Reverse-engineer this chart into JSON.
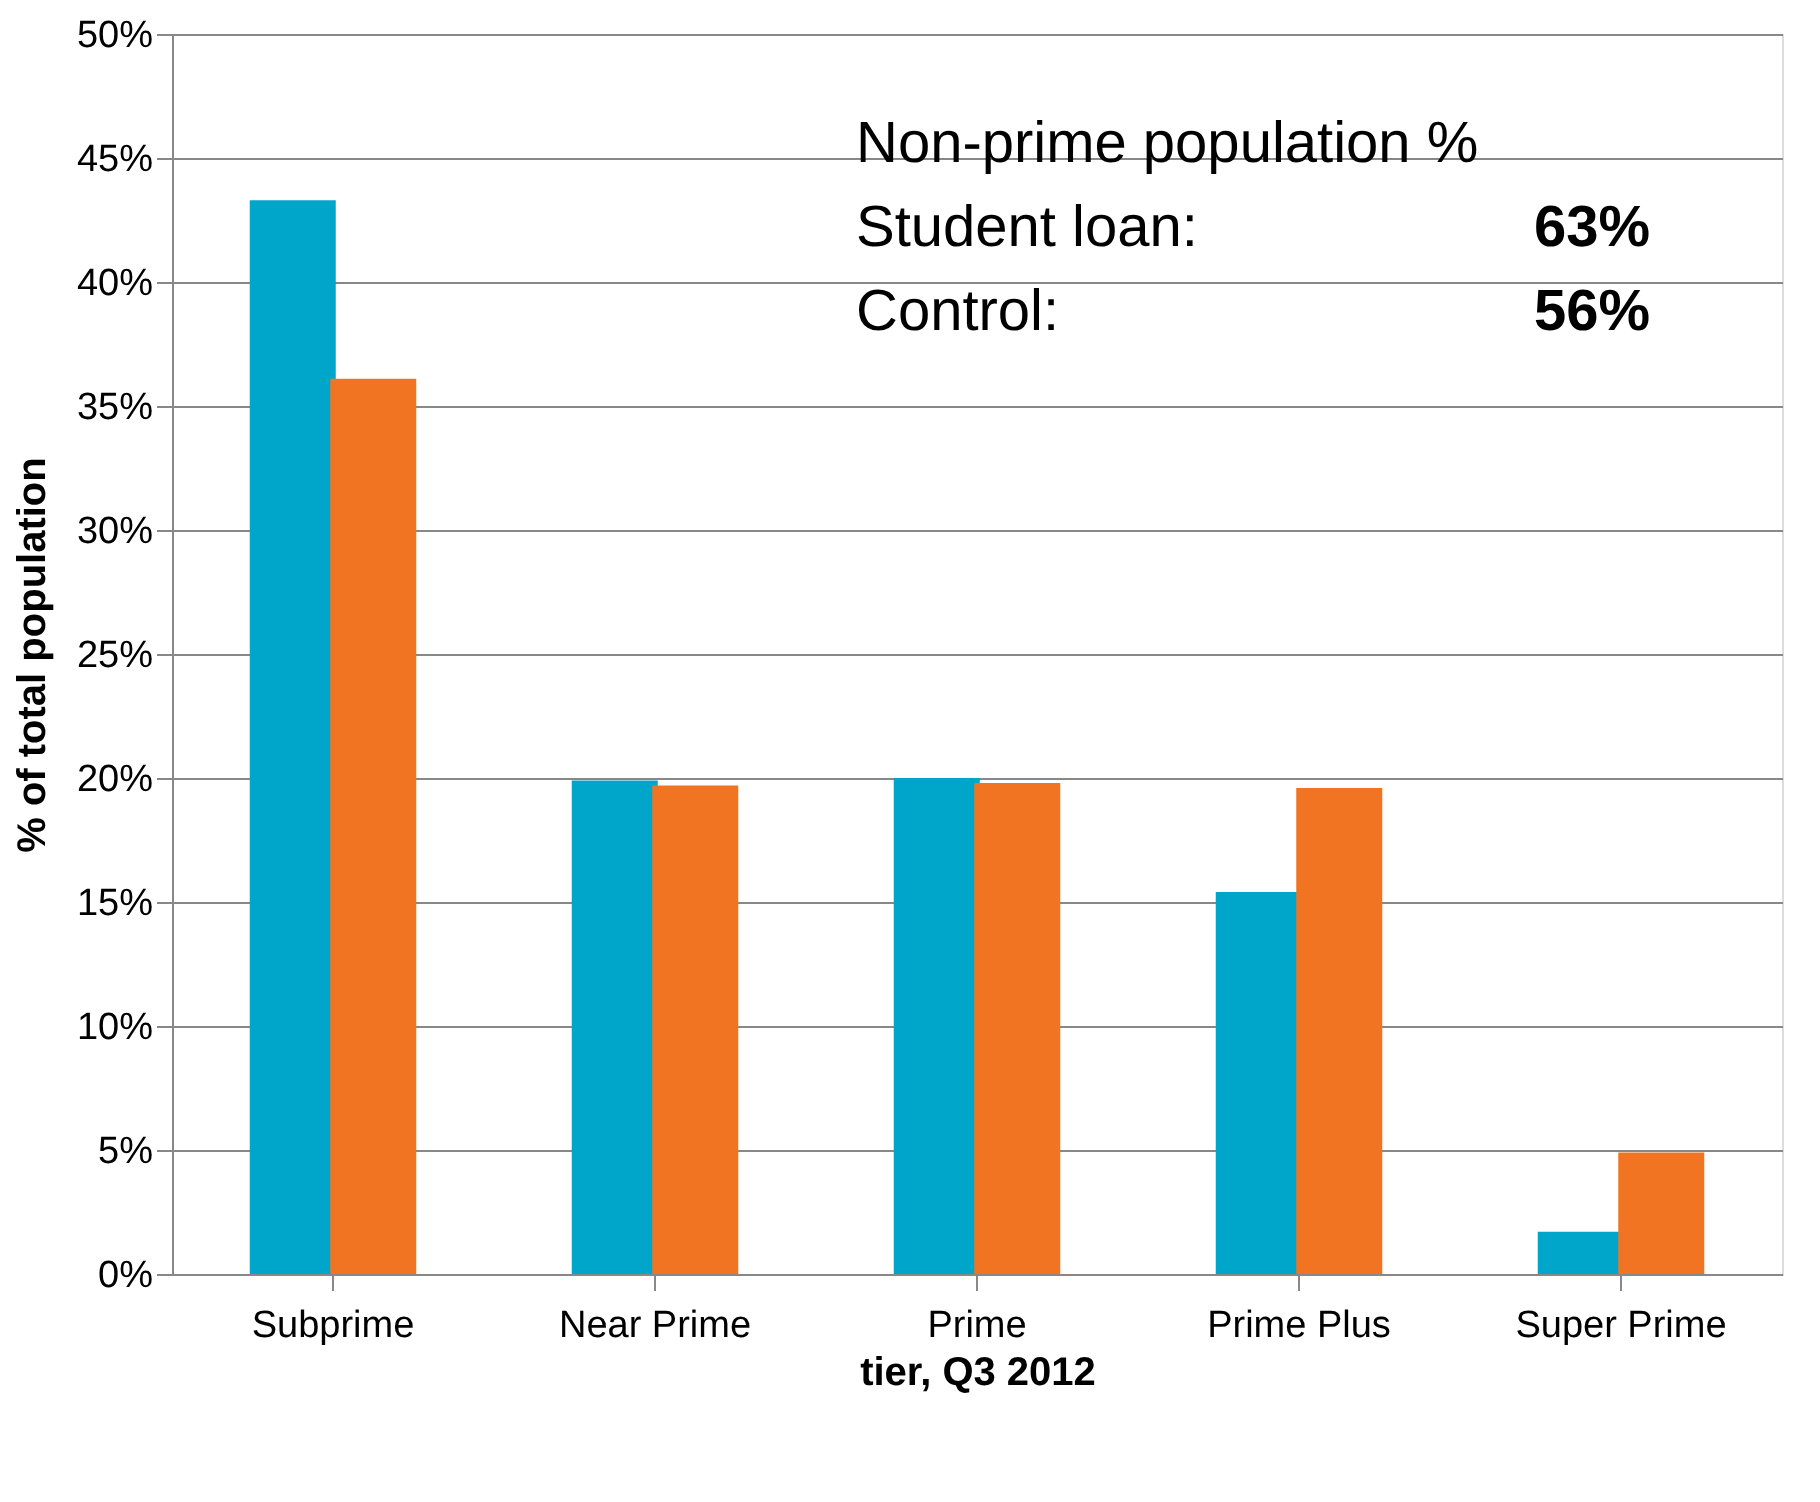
{
  "chart_data": {
    "type": "bar",
    "xlabel": "tier, Q3 2012",
    "ylabel": "% of total population",
    "categories": [
      "Subprime",
      "Near Prime",
      "Prime",
      "Prime Plus",
      "Super Prime"
    ],
    "series": [
      {
        "color": "#00a6c9",
        "values": [
          43.3,
          19.9,
          20.0,
          15.4,
          1.7
        ]
      },
      {
        "color": "#f07422",
        "values": [
          36.1,
          19.7,
          19.8,
          19.6,
          4.9
        ]
      }
    ],
    "ylim": [
      0,
      50
    ],
    "yticks": [
      {
        "value": 0,
        "label": "0%"
      },
      {
        "value": 5,
        "label": "5%"
      },
      {
        "value": 10,
        "label": "10%"
      },
      {
        "value": 15,
        "label": "15%"
      },
      {
        "value": 20,
        "label": "20%"
      },
      {
        "value": 25,
        "label": "25%"
      },
      {
        "value": 30,
        "label": "30%"
      },
      {
        "value": 35,
        "label": "35%"
      },
      {
        "value": 40,
        "label": "40%"
      },
      {
        "value": 45,
        "label": "45%"
      },
      {
        "value": 50,
        "label": "50%"
      }
    ],
    "grid": "y",
    "legend": false,
    "annotations": [
      "Non-prime population %",
      "Student loan:",
      "63%",
      "Control:",
      "56%"
    ]
  }
}
